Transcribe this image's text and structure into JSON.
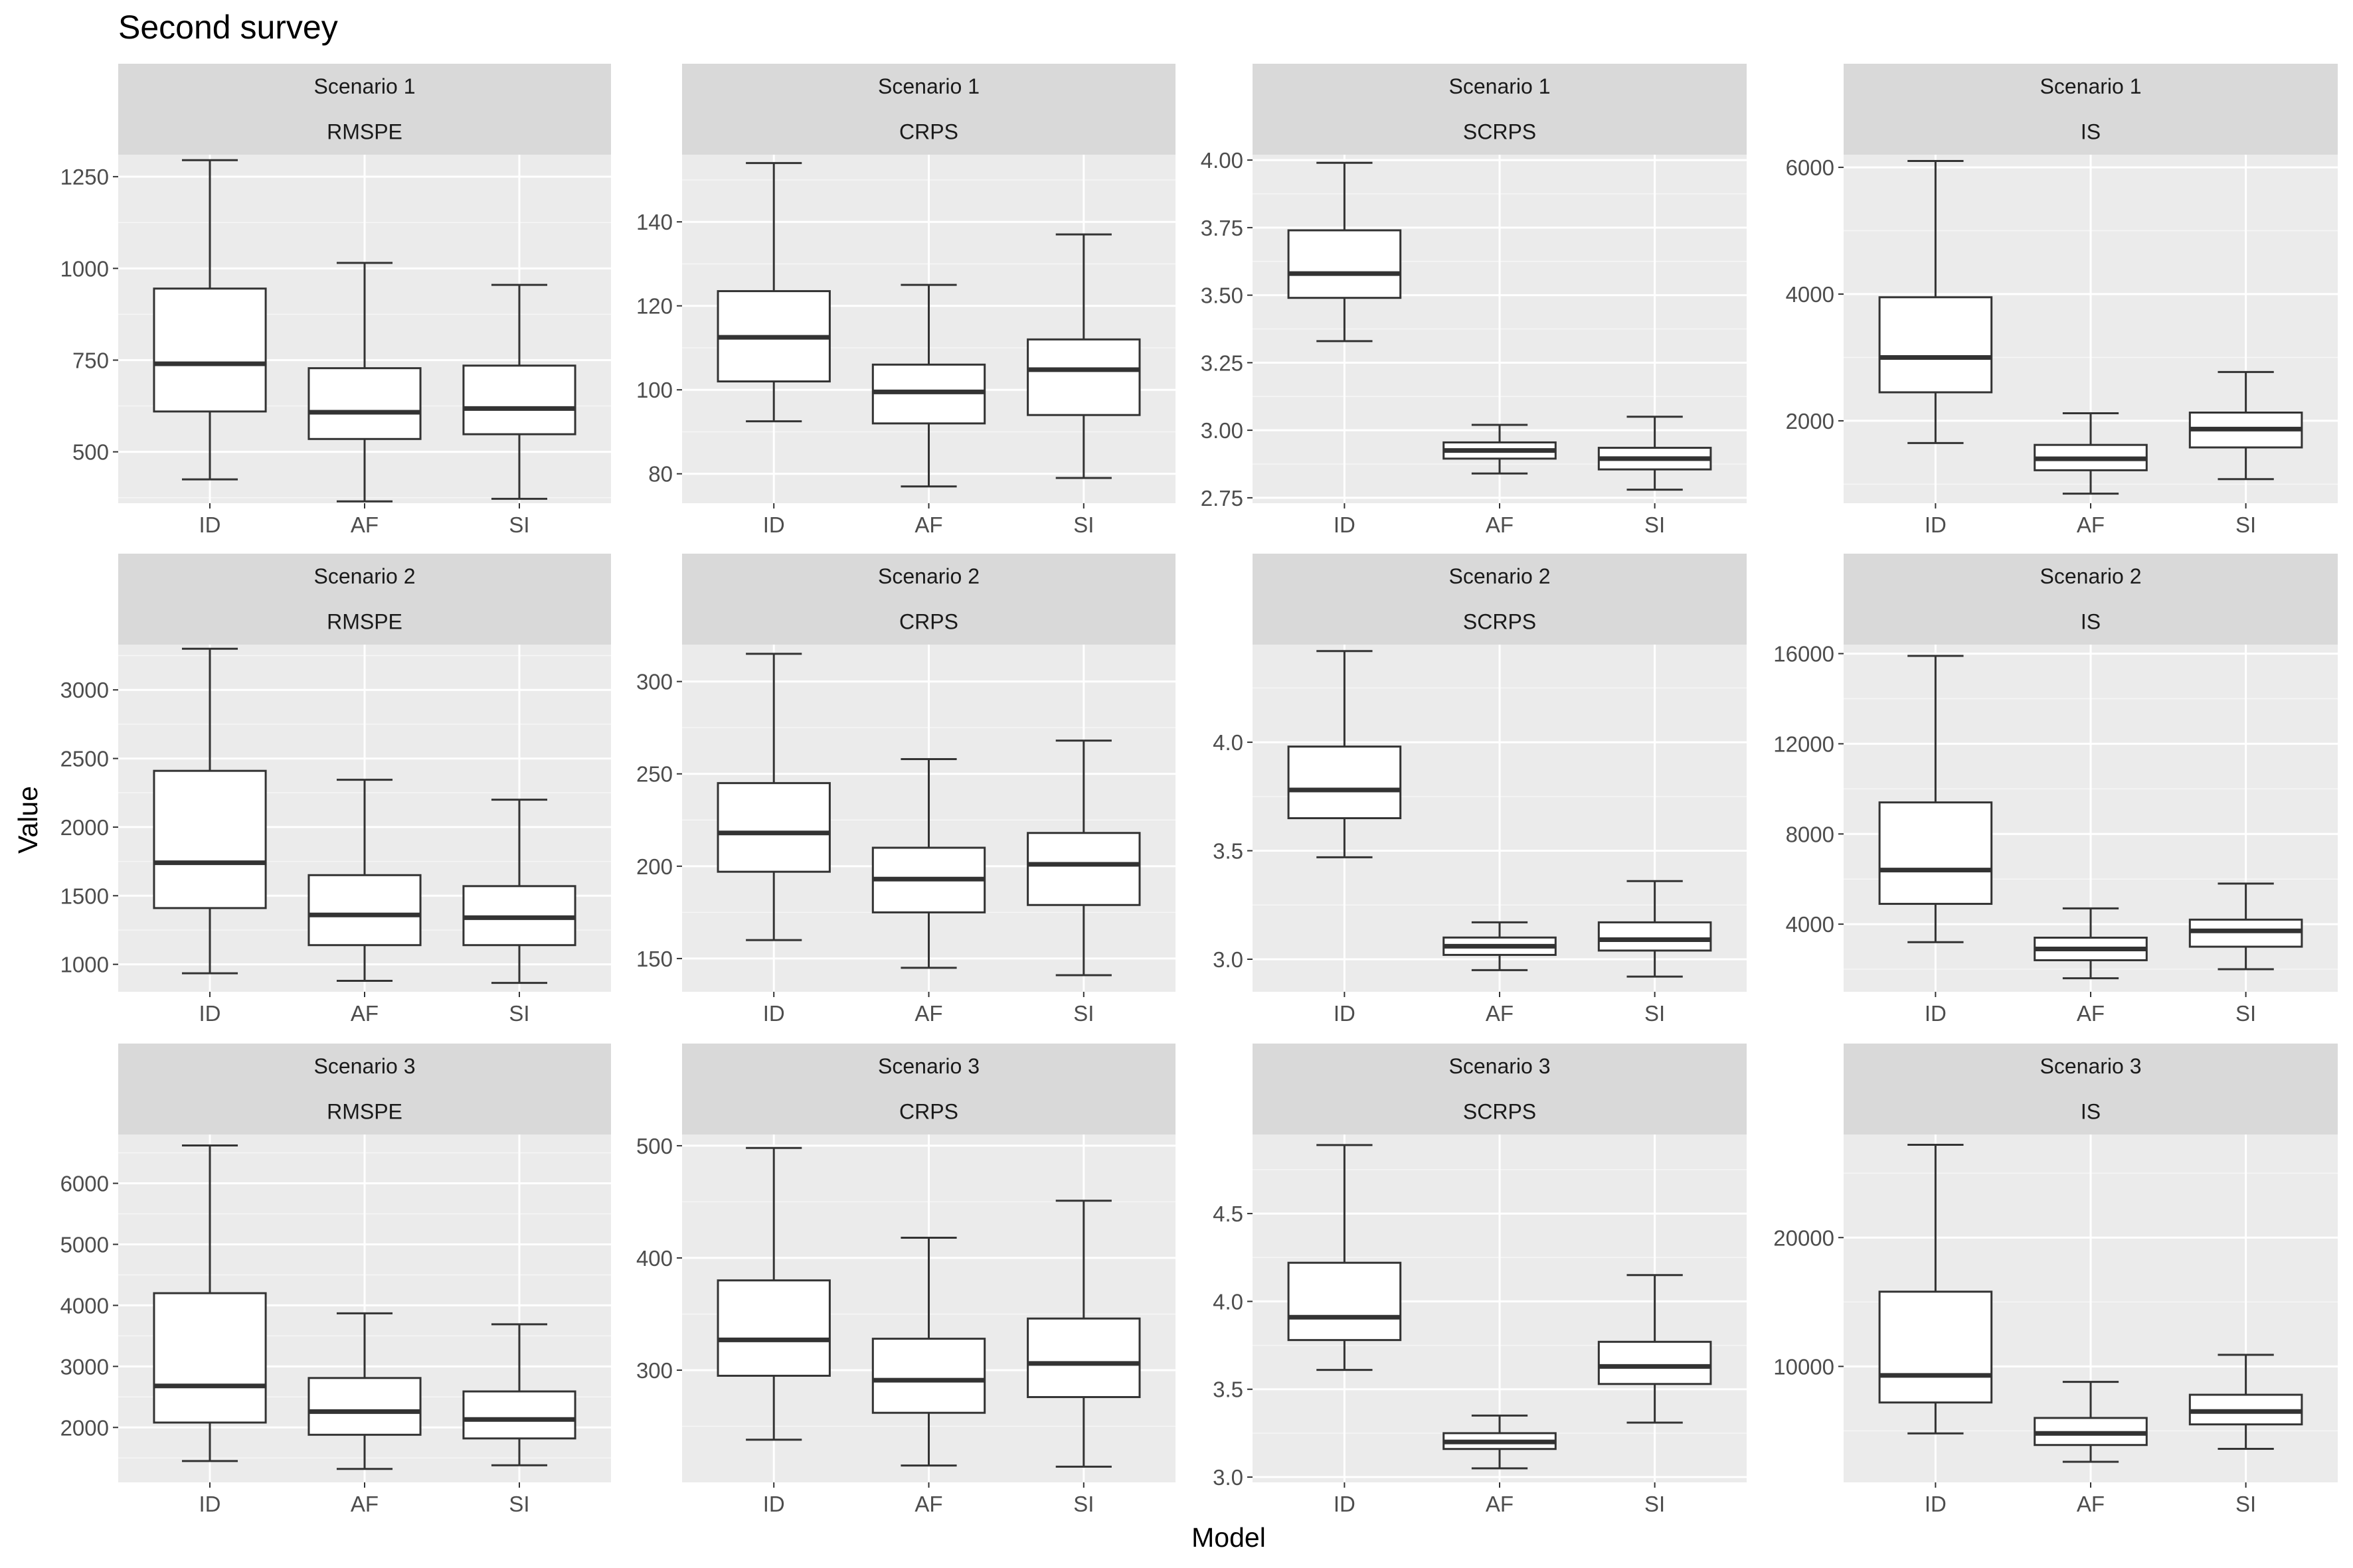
{
  "figure": {
    "title": "Second survey",
    "xlabel": "Model",
    "ylabel": "Value"
  },
  "colors": {
    "panel_bg": "#ebebeb",
    "strip_bg": "#d9d9d9",
    "grid_major": "#ffffff",
    "box_line": "#333333",
    "box_fill": "#ffffff",
    "tick_text": "#4d4d4d"
  },
  "chart_data": [
    {
      "type": "boxplot",
      "scenario": "Scenario 1",
      "metric": "RMSPE",
      "categories": [
        "ID",
        "AF",
        "SI"
      ],
      "ylim": [
        360,
        1310
      ],
      "yticks": [
        500,
        750,
        1000,
        1250
      ],
      "boxes": [
        {
          "model": "ID",
          "min": 425,
          "q1": 610,
          "median": 740,
          "q3": 945,
          "max": 1295
        },
        {
          "model": "AF",
          "min": 365,
          "q1": 535,
          "median": 608,
          "q3": 728,
          "max": 1015
        },
        {
          "model": "SI",
          "min": 372,
          "q1": 548,
          "median": 618,
          "q3": 735,
          "max": 955
        }
      ]
    },
    {
      "type": "boxplot",
      "scenario": "Scenario 1",
      "metric": "CRPS",
      "categories": [
        "ID",
        "AF",
        "SI"
      ],
      "ylim": [
        73,
        156
      ],
      "yticks": [
        80,
        100,
        120,
        140
      ],
      "boxes": [
        {
          "model": "ID",
          "min": 92.5,
          "q1": 102,
          "median": 112.5,
          "q3": 123.5,
          "max": 154
        },
        {
          "model": "AF",
          "min": 77,
          "q1": 92,
          "median": 99.5,
          "q3": 106,
          "max": 125
        },
        {
          "model": "SI",
          "min": 79,
          "q1": 94,
          "median": 104.8,
          "q3": 112,
          "max": 137
        }
      ]
    },
    {
      "type": "boxplot",
      "scenario": "Scenario 1",
      "metric": "SCRPS",
      "categories": [
        "ID",
        "AF",
        "SI"
      ],
      "ylim": [
        2.73,
        4.02
      ],
      "yticks": [
        2.75,
        3.0,
        3.25,
        3.5,
        3.75,
        4.0
      ],
      "boxes": [
        {
          "model": "ID",
          "min": 3.33,
          "q1": 3.49,
          "median": 3.58,
          "q3": 3.74,
          "max": 3.99
        },
        {
          "model": "AF",
          "min": 2.84,
          "q1": 2.895,
          "median": 2.925,
          "q3": 2.955,
          "max": 3.02
        },
        {
          "model": "SI",
          "min": 2.78,
          "q1": 2.855,
          "median": 2.895,
          "q3": 2.935,
          "max": 3.05
        }
      ]
    },
    {
      "type": "boxplot",
      "scenario": "Scenario 1",
      "metric": "IS",
      "categories": [
        "ID",
        "AF",
        "SI"
      ],
      "ylim": [
        700,
        6200
      ],
      "yticks": [
        2000,
        4000,
        6000
      ],
      "boxes": [
        {
          "model": "ID",
          "min": 1650,
          "q1": 2450,
          "median": 3000,
          "q3": 3950,
          "max": 6100
        },
        {
          "model": "AF",
          "min": 850,
          "q1": 1220,
          "median": 1400,
          "q3": 1620,
          "max": 2120
        },
        {
          "model": "SI",
          "min": 1080,
          "q1": 1580,
          "median": 1870,
          "q3": 2130,
          "max": 2770
        }
      ]
    },
    {
      "type": "boxplot",
      "scenario": "Scenario 2",
      "metric": "RMSPE",
      "categories": [
        "ID",
        "AF",
        "SI"
      ],
      "ylim": [
        800,
        3330
      ],
      "yticks": [
        1000,
        1500,
        2000,
        2500,
        3000
      ],
      "boxes": [
        {
          "model": "ID",
          "min": 935,
          "q1": 1410,
          "median": 1740,
          "q3": 2410,
          "max": 3300
        },
        {
          "model": "AF",
          "min": 880,
          "q1": 1140,
          "median": 1360,
          "q3": 1650,
          "max": 2345
        },
        {
          "model": "SI",
          "min": 865,
          "q1": 1140,
          "median": 1340,
          "q3": 1570,
          "max": 2200
        }
      ]
    },
    {
      "type": "boxplot",
      "scenario": "Scenario 2",
      "metric": "CRPS",
      "categories": [
        "ID",
        "AF",
        "SI"
      ],
      "ylim": [
        132,
        320
      ],
      "yticks": [
        150,
        200,
        250,
        300
      ],
      "boxes": [
        {
          "model": "ID",
          "min": 160,
          "q1": 197,
          "median": 218,
          "q3": 245,
          "max": 315
        },
        {
          "model": "AF",
          "min": 145,
          "q1": 175,
          "median": 193,
          "q3": 210,
          "max": 258
        },
        {
          "model": "SI",
          "min": 141,
          "q1": 179,
          "median": 201,
          "q3": 218,
          "max": 268
        }
      ]
    },
    {
      "type": "boxplot",
      "scenario": "Scenario 2",
      "metric": "SCRPS",
      "categories": [
        "ID",
        "AF",
        "SI"
      ],
      "ylim": [
        2.85,
        4.45
      ],
      "yticks": [
        3.0,
        3.5,
        4.0
      ],
      "boxes": [
        {
          "model": "ID",
          "min": 3.47,
          "q1": 3.65,
          "median": 3.78,
          "q3": 3.98,
          "max": 4.42
        },
        {
          "model": "AF",
          "min": 2.95,
          "q1": 3.02,
          "median": 3.06,
          "q3": 3.1,
          "max": 3.17
        },
        {
          "model": "SI",
          "min": 2.92,
          "q1": 3.04,
          "median": 3.09,
          "q3": 3.17,
          "max": 3.36
        }
      ]
    },
    {
      "type": "boxplot",
      "scenario": "Scenario 2",
      "metric": "IS",
      "categories": [
        "ID",
        "AF",
        "SI"
      ],
      "ylim": [
        1000,
        16400
      ],
      "yticks": [
        4000,
        8000,
        12000,
        16000
      ],
      "boxes": [
        {
          "model": "ID",
          "min": 3200,
          "q1": 4900,
          "median": 6400,
          "q3": 9400,
          "max": 15900
        },
        {
          "model": "AF",
          "min": 1600,
          "q1": 2400,
          "median": 2900,
          "q3": 3400,
          "max": 4700
        },
        {
          "model": "SI",
          "min": 2000,
          "q1": 3000,
          "median": 3700,
          "q3": 4200,
          "max": 5800
        }
      ]
    },
    {
      "type": "boxplot",
      "scenario": "Scenario 3",
      "metric": "RMSPE",
      "categories": [
        "ID",
        "AF",
        "SI"
      ],
      "ylim": [
        1100,
        6800
      ],
      "yticks": [
        2000,
        3000,
        4000,
        5000,
        6000
      ],
      "boxes": [
        {
          "model": "ID",
          "min": 1450,
          "q1": 2080,
          "median": 2680,
          "q3": 4200,
          "max": 6620
        },
        {
          "model": "AF",
          "min": 1320,
          "q1": 1880,
          "median": 2260,
          "q3": 2810,
          "max": 3870
        },
        {
          "model": "SI",
          "min": 1380,
          "q1": 1820,
          "median": 2130,
          "q3": 2590,
          "max": 3690
        }
      ]
    },
    {
      "type": "boxplot",
      "scenario": "Scenario 3",
      "metric": "CRPS",
      "categories": [
        "ID",
        "AF",
        "SI"
      ],
      "ylim": [
        200,
        510
      ],
      "yticks": [
        300,
        400,
        500
      ],
      "boxes": [
        {
          "model": "ID",
          "min": 238,
          "q1": 295,
          "median": 327,
          "q3": 380,
          "max": 498
        },
        {
          "model": "AF",
          "min": 215,
          "q1": 262,
          "median": 291,
          "q3": 328,
          "max": 418
        },
        {
          "model": "SI",
          "min": 214,
          "q1": 276,
          "median": 306,
          "q3": 346,
          "max": 451
        }
      ]
    },
    {
      "type": "boxplot",
      "scenario": "Scenario 3",
      "metric": "SCRPS",
      "categories": [
        "ID",
        "AF",
        "SI"
      ],
      "ylim": [
        2.97,
        4.95
      ],
      "yticks": [
        3.0,
        3.5,
        4.0,
        4.5
      ],
      "boxes": [
        {
          "model": "ID",
          "min": 3.61,
          "q1": 3.78,
          "median": 3.91,
          "q3": 4.22,
          "max": 4.89
        },
        {
          "model": "AF",
          "min": 3.05,
          "q1": 3.16,
          "median": 3.2,
          "q3": 3.25,
          "max": 3.35
        },
        {
          "model": "SI",
          "min": 3.31,
          "q1": 3.53,
          "median": 3.63,
          "q3": 3.77,
          "max": 4.15
        }
      ]
    },
    {
      "type": "boxplot",
      "scenario": "Scenario 3",
      "metric": "IS",
      "categories": [
        "ID",
        "AF",
        "SI"
      ],
      "ylim": [
        1000,
        28000
      ],
      "yticks": [
        10000,
        20000
      ],
      "boxes": [
        {
          "model": "ID",
          "min": 4800,
          "q1": 7200,
          "median": 9300,
          "q3": 15800,
          "max": 27200
        },
        {
          "model": "AF",
          "min": 2600,
          "q1": 3900,
          "median": 4800,
          "q3": 6000,
          "max": 8800
        },
        {
          "model": "SI",
          "min": 3600,
          "q1": 5500,
          "median": 6500,
          "q3": 7800,
          "max": 10900
        }
      ]
    }
  ]
}
